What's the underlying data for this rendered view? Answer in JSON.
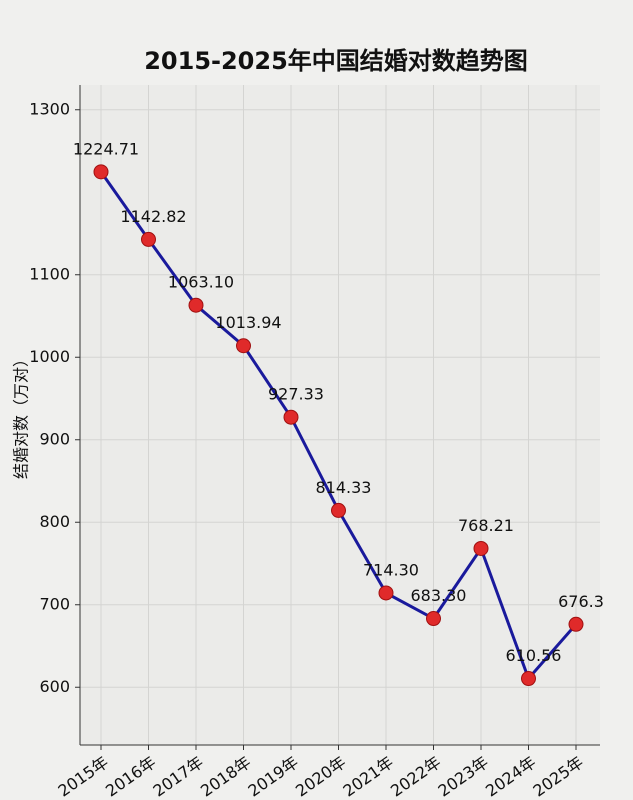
{
  "chart_data": {
    "type": "line",
    "title": "2015-2025年中国结婚对数趋势图",
    "y_label": "结婚对数（万对）",
    "categories": [
      "2015年",
      "2016年",
      "2017年",
      "2018年",
      "2019年",
      "2020年",
      "2021年",
      "2022年",
      "2023年",
      "2024年",
      "2025年"
    ],
    "series": [
      {
        "name": "结婚对数",
        "color": "#1a1a9c",
        "marker_color": "#e02a2a",
        "values": [
          1224.71,
          1142.82,
          1063.1,
          1013.94,
          927.33,
          814.33,
          714.3,
          683.3,
          768.21,
          610.56,
          676.3
        ],
        "value_labels": [
          "1224.71",
          "1142.82",
          "1063.10",
          "1013.94",
          "927.33",
          "814.33",
          "714.30",
          "683.30",
          "768.21",
          "610.56",
          "676.3"
        ]
      }
    ],
    "ylim": [
      530,
      1330
    ],
    "yticks": [
      600,
      700,
      800,
      900,
      1000,
      1100,
      1300
    ],
    "grid": true
  }
}
